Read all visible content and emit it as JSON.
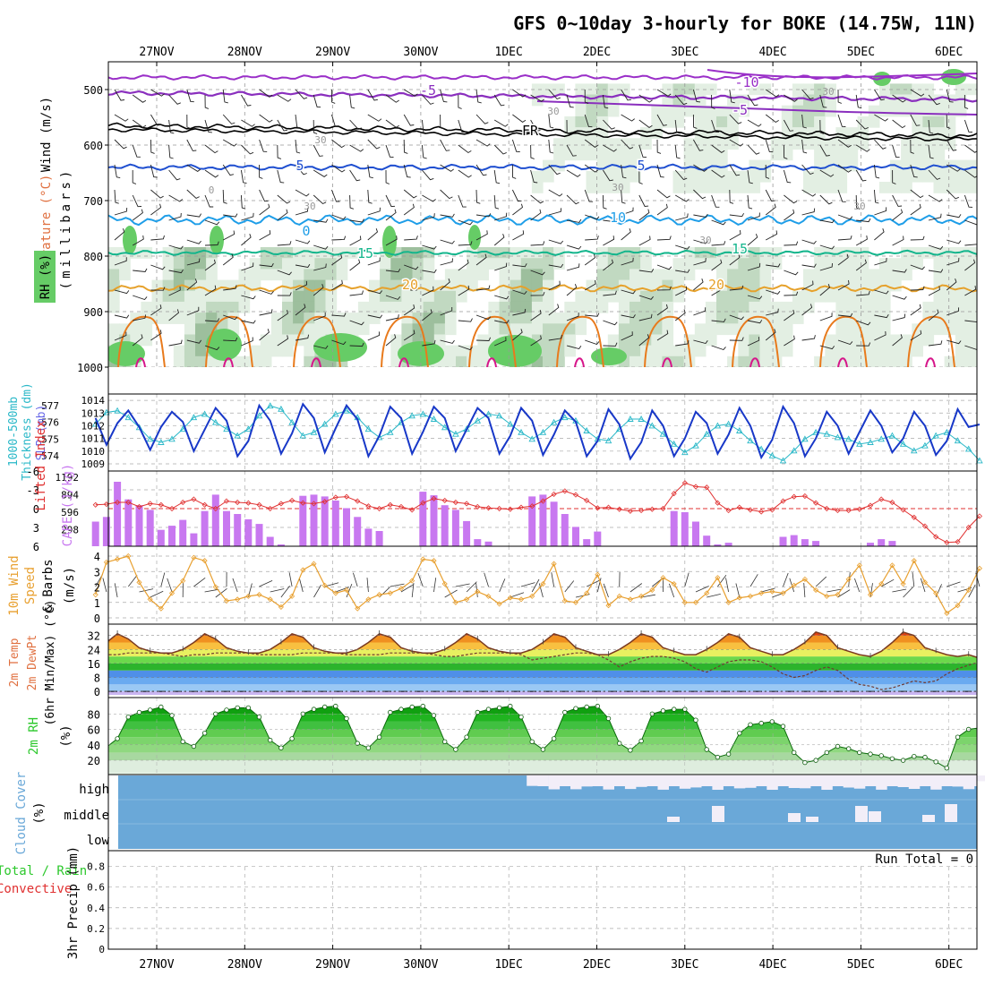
{
  "chart_data": {
    "type": "meteogram",
    "title": "GFS 0~10day 3-hourly for BOKE (14.75W, 11N)",
    "dates": [
      "27NOV",
      "28NOV",
      "29NOV",
      "30NOV",
      "1DEC",
      "2DEC",
      "3DEC",
      "4DEC",
      "5DEC",
      "6DEC"
    ],
    "colors": {
      "rh_light": "#e3efe3",
      "rh_mid": "#c1d9c1",
      "rh_dark": "#9dbf9d",
      "rh_green": "#66cc66",
      "temp_neg10": "#9a2fc8",
      "temp_neg5": "#8a2fbe",
      "temp_fr": "#000000",
      "temp_5": "#1f4fd0",
      "temp_10": "#1f9ee8",
      "temp_15": "#13b58c",
      "temp_20": "#e6a12b",
      "temp_25": "#e87a1c",
      "temp_30": "#d6168a",
      "slp": "#1838c8",
      "thickness": "#2ab8c8",
      "cape": "#c878f0",
      "lifted": "#e03030",
      "wind": "#e8a030",
      "rh2m": "#2cc82c",
      "cloud": "#6aa8d8",
      "cloud_gap": "#f2eef8"
    },
    "panels": {
      "profile": {
        "ylabel": "(millibars)",
        "labels": [
          "Wind (m/s)",
          "Temperature (°C)",
          "RH (%)"
        ],
        "levels": [
          500,
          600,
          700,
          800,
          900,
          1000
        ],
        "contour_labels": {
          "temperature": [
            "-10",
            "-5",
            "-5",
            "FR",
            "5",
            "5",
            "0",
            "10",
            "15",
            "15",
            "20",
            "20"
          ],
          "rh": [
            "30",
            "30",
            "30",
            "30",
            "0",
            "30",
            "30",
            "30"
          ]
        }
      },
      "pressure": {
        "labels": [
          "1000-500mb",
          "Thickness (dm)",
          "SLP (mb)"
        ],
        "thickness_ticks": [
          "577",
          "576",
          "575",
          "574"
        ],
        "slp_ticks": [
          "1014",
          "1013",
          "1012",
          "1011",
          "1010",
          "1009"
        ],
        "slp_range": [
          1009,
          1014.5
        ],
        "thickness_range": [
          573.4,
          577.6
        ],
        "slp": [
          1012.6,
          1010.5,
          1012.2,
          1013.2,
          1011.9,
          1010.1,
          1011.9,
          1013.1,
          1012.3,
          1010.0,
          1011.7,
          1013.4,
          1012.4,
          1009.6,
          1010.8,
          1013.6,
          1012.4,
          1009.8,
          1011.4,
          1013.7,
          1012.6,
          1009.9,
          1011.8,
          1013.6,
          1012.5,
          1009.6,
          1011.2,
          1013.5,
          1012.6,
          1009.8,
          1011.5,
          1013.5,
          1012.6,
          1010.0,
          1011.7,
          1013.4,
          1012.6,
          1009.8,
          1011.2,
          1013.4,
          1012.4,
          1009.7,
          1011.3,
          1013.2,
          1012.3,
          1009.6,
          1010.8,
          1013.3,
          1012.1,
          1009.4,
          1010.7,
          1013.2,
          1012.0,
          1009.6,
          1011.0,
          1013.1,
          1012.2,
          1009.8,
          1011.3,
          1013.4,
          1012.0,
          1009.5,
          1010.9,
          1013.5,
          1012.2,
          1009.6,
          1011.0,
          1013.1,
          1012.0,
          1009.8,
          1011.5,
          1013.2,
          1012.0,
          1009.9,
          1011.0,
          1013.1,
          1012.0,
          1009.7,
          1010.8,
          1013.3,
          1011.9,
          1012.1
        ],
        "thickness": [
          575.9,
          576.6,
          576.7,
          576.3,
          575.7,
          575.0,
          574.8,
          575.0,
          575.6,
          576.3,
          576.5,
          576.0,
          575.6,
          575.2,
          575.6,
          576.4,
          577.0,
          576.8,
          576.0,
          575.2,
          575.4,
          575.9,
          576.5,
          576.7,
          576.3,
          575.6,
          575.1,
          575.4,
          576.0,
          576.4,
          576.5,
          576.2,
          575.7,
          575.3,
          575.6,
          576.1,
          576.5,
          576.4,
          575.9,
          575.4,
          575.0,
          575.4,
          576.0,
          576.3,
          576.1,
          575.5,
          575.0,
          574.9,
          575.6,
          576.2,
          576.2,
          575.8,
          575.3,
          574.7,
          574.2,
          574.6,
          575.3,
          575.8,
          575.9,
          575.5,
          574.9,
          574.4,
          574.0,
          573.7,
          574.3,
          575.0,
          575.4,
          575.3,
          575.1,
          575.0,
          574.7,
          574.8,
          575.0,
          575.2,
          574.7,
          574.3,
          574.6,
          575.2,
          575.4,
          574.9,
          574.4,
          573.7
        ]
      },
      "cape": {
        "labels": [
          "Lifted Index",
          "CAPE (J/kg)"
        ],
        "li_ticks": [
          "-6",
          "-3",
          "0",
          "3",
          "6"
        ],
        "cape_ticks": [
          "1192",
          "894",
          "596",
          "298"
        ],
        "cape_range": [
          0,
          1192
        ],
        "li_range": [
          -6,
          6
        ],
        "cape": [
          420,
          500,
          1100,
          800,
          700,
          620,
          280,
          350,
          450,
          220,
          600,
          880,
          600,
          550,
          460,
          380,
          160,
          30,
          0,
          860,
          880,
          850,
          780,
          650,
          500,
          300,
          260,
          0,
          0,
          0,
          930,
          870,
          700,
          620,
          430,
          120,
          80,
          0,
          0,
          0,
          850,
          880,
          760,
          550,
          330,
          120,
          250,
          0,
          0,
          0,
          0,
          0,
          0,
          600,
          580,
          420,
          180,
          30,
          60,
          0,
          0,
          0,
          0,
          160,
          190,
          120,
          90,
          0,
          0,
          0,
          0,
          60,
          120,
          90,
          0,
          0,
          0,
          0,
          0,
          0,
          0,
          0
        ],
        "lifted": [
          -0.6,
          -0.7,
          -1.0,
          -1.0,
          -0.3,
          -0.8,
          -0.6,
          0.0,
          -1.0,
          -1.5,
          -0.6,
          0.0,
          -1.2,
          -1.0,
          -0.9,
          -0.6,
          0.0,
          -0.8,
          -1.3,
          -0.9,
          -0.8,
          -1.1,
          -1.8,
          -1.9,
          -1.2,
          -0.4,
          0.0,
          -0.6,
          -0.3,
          0.2,
          -0.9,
          -1.6,
          -1.3,
          -1.0,
          -0.8,
          -0.3,
          -0.1,
          0.0,
          0.1,
          -0.2,
          -0.4,
          -1.2,
          -2.3,
          -2.8,
          -2.2,
          -1.3,
          -0.1,
          -0.2,
          0.1,
          0.4,
          0.3,
          0.1,
          0.0,
          -2.4,
          -4.1,
          -3.5,
          -3.4,
          -0.9,
          0.3,
          -0.2,
          0.2,
          0.5,
          0.2,
          -1.2,
          -1.9,
          -2.0,
          -0.9,
          0.0,
          0.3,
          0.3,
          0.1,
          -0.5,
          -1.5,
          -1.0,
          0.2,
          1.4,
          2.8,
          4.5,
          5.4,
          5.3,
          3.0,
          1.2
        ]
      },
      "wind": {
        "labels": [
          "10m Wind",
          "Speed",
          "& Barbs",
          "(m/s)"
        ],
        "ticks": [
          "4",
          "3",
          "2",
          "1",
          "0"
        ],
        "range": [
          0,
          4.3
        ],
        "speed": [
          1.5,
          3.6,
          3.8,
          4.0,
          2.3,
          1.2,
          0.6,
          1.6,
          2.4,
          3.9,
          3.7,
          2.0,
          1.1,
          1.2,
          1.4,
          1.5,
          1.2,
          0.7,
          1.4,
          3.1,
          3.5,
          2.1,
          1.6,
          1.8,
          0.6,
          1.2,
          1.5,
          1.6,
          1.9,
          2.4,
          3.8,
          3.7,
          2.2,
          1.0,
          1.2,
          1.7,
          1.4,
          0.9,
          1.3,
          1.2,
          1.4,
          2.2,
          3.5,
          1.1,
          1.0,
          1.6,
          2.8,
          0.8,
          1.4,
          1.2,
          1.4,
          1.8,
          2.6,
          2.2,
          1.0,
          1.0,
          1.6,
          2.6,
          1.0,
          1.3,
          1.4,
          1.6,
          1.7,
          1.6,
          2.1,
          2.5,
          1.8,
          1.4,
          1.5,
          2.5,
          3.4,
          1.5,
          2.2,
          3.4,
          2.2,
          3.7,
          2.3,
          1.6,
          0.3,
          0.8,
          1.8,
          3.2
        ]
      },
      "temp2m": {
        "labels": [
          "2m Temp",
          "2m DewPt",
          "(6hr Min/Max) (°C)"
        ],
        "ticks": [
          "32",
          "24",
          "16",
          "8",
          "0"
        ],
        "range": [
          -2,
          38
        ],
        "temp": [
          24,
          28,
          33,
          30,
          25,
          23,
          22,
          22,
          24,
          28,
          33,
          30,
          25,
          23,
          22,
          22,
          24,
          28,
          33,
          31,
          25,
          23,
          22,
          22,
          24,
          28,
          33,
          31,
          25,
          23,
          22,
          22,
          24,
          28,
          33,
          30,
          25,
          23,
          22,
          22,
          24,
          28,
          33,
          31,
          25,
          23,
          21,
          21,
          24,
          28,
          33,
          31,
          25,
          23,
          21,
          21,
          24,
          28,
          33,
          31,
          25,
          23,
          21,
          21,
          24,
          28,
          34,
          32,
          25,
          23,
          21,
          20,
          23,
          28,
          34,
          32,
          25,
          23,
          21,
          20,
          21,
          19
        ],
        "dewpt": [
          21,
          21,
          21,
          22,
          22,
          22,
          22,
          21,
          20,
          21,
          21,
          22,
          22,
          22,
          22,
          21,
          21,
          21,
          21,
          22,
          22,
          22,
          22,
          21,
          21,
          21,
          21,
          22,
          22,
          22,
          22,
          21,
          20,
          20,
          21,
          22,
          22,
          22,
          22,
          21,
          18,
          19,
          20,
          21,
          22,
          22,
          21,
          18,
          14,
          17,
          19,
          20,
          20,
          19,
          17,
          13,
          11,
          14,
          17,
          18,
          18,
          17,
          14,
          10,
          8,
          9,
          12,
          14,
          12,
          7,
          4,
          3,
          1,
          2,
          4,
          6,
          5,
          6,
          10,
          13,
          15,
          17
        ]
      },
      "rh2m": {
        "labels": [
          "2m RH",
          "(%)"
        ],
        "ticks": [
          "80",
          "60",
          "40",
          "20"
        ],
        "range": [
          5,
          100
        ],
        "rh": [
          42,
          37,
          48,
          76,
          82,
          85,
          89,
          78,
          44,
          38,
          55,
          80,
          85,
          88,
          88,
          76,
          46,
          36,
          48,
          80,
          86,
          89,
          90,
          74,
          42,
          36,
          50,
          82,
          86,
          89,
          90,
          78,
          44,
          34,
          50,
          82,
          86,
          88,
          90,
          76,
          44,
          34,
          48,
          82,
          87,
          89,
          90,
          74,
          42,
          33,
          45,
          80,
          84,
          86,
          86,
          72,
          34,
          24,
          28,
          55,
          66,
          68,
          70,
          64,
          30,
          17,
          20,
          30,
          38,
          35,
          30,
          28,
          26,
          22,
          20,
          25,
          24,
          18,
          10,
          50,
          60,
          62
        ]
      },
      "cloud": {
        "labels": [
          "Cloud Cover",
          "(%)"
        ],
        "rows": [
          "high",
          "middle",
          "low"
        ]
      },
      "precip": {
        "labels": [
          "Total / Rain",
          "Convective",
          "3hr Precip (mm)"
        ],
        "ticks": [
          "0.8",
          "0.6",
          "0.4",
          "0.2",
          "0"
        ],
        "run_total": "Run Total = 0"
      }
    }
  }
}
